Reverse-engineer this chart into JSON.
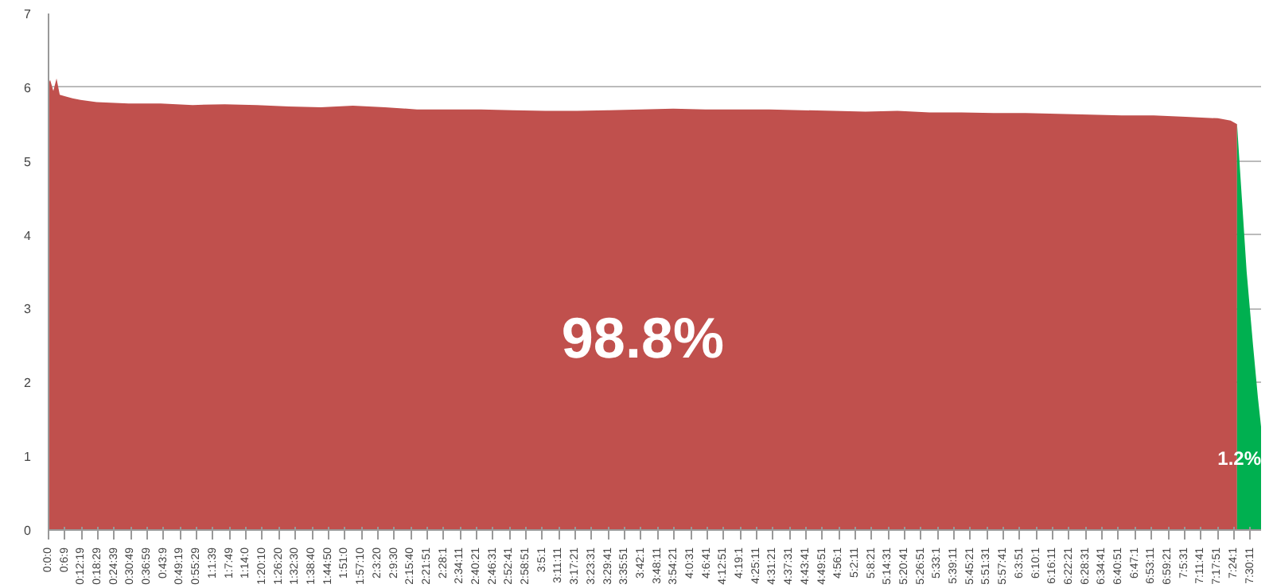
{
  "chart_data": {
    "type": "area",
    "series": [
      {
        "name": "98.8%",
        "color": "#c0504d",
        "x": [
          0,
          0.01,
          0.03,
          0.05,
          0.07,
          0.1,
          0.15,
          0.2,
          0.3,
          0.5,
          0.7,
          0.9,
          1.1,
          1.3,
          1.5,
          1.7,
          1.9,
          2.1,
          2.3,
          2.5,
          2.7,
          2.9,
          3.1,
          3.3,
          3.5,
          3.7,
          3.9,
          4.1,
          4.3,
          4.5,
          4.7,
          4.9,
          5.1,
          5.3,
          5.5,
          5.7,
          5.9,
          6.1,
          6.3,
          6.5,
          6.7,
          6.9,
          7.1,
          7.3,
          7.38,
          7.42
        ],
        "values": [
          6.05,
          6.1,
          5.95,
          6.12,
          5.9,
          5.88,
          5.85,
          5.83,
          5.8,
          5.78,
          5.78,
          5.76,
          5.77,
          5.76,
          5.74,
          5.73,
          5.75,
          5.73,
          5.7,
          5.7,
          5.7,
          5.69,
          5.68,
          5.68,
          5.69,
          5.7,
          5.71,
          5.7,
          5.7,
          5.7,
          5.69,
          5.68,
          5.67,
          5.68,
          5.66,
          5.66,
          5.65,
          5.65,
          5.64,
          5.63,
          5.62,
          5.62,
          5.6,
          5.58,
          5.55,
          5.5
        ]
      },
      {
        "name": "1.2%",
        "color": "#00b050",
        "x": [
          7.42,
          7.45,
          7.48,
          7.52,
          7.55,
          7.57
        ],
        "values": [
          5.5,
          4.5,
          3.5,
          2.5,
          1.8,
          1.4
        ]
      }
    ],
    "xlim": [
      0,
      7.57
    ],
    "xticks": [
      {
        "value": 0,
        "label": "0:0:0"
      },
      {
        "value": 0.1025,
        "label": "0:6:9"
      },
      {
        "value": 0.2053,
        "label": "0:12:19"
      },
      {
        "value": 0.3081,
        "label": "0:18:29"
      },
      {
        "value": 0.4108,
        "label": "0:24:39"
      },
      {
        "value": 0.5136,
        "label": "0:30:49"
      },
      {
        "value": 0.6164,
        "label": "0:36:59"
      },
      {
        "value": 0.7192,
        "label": "0:43:9"
      },
      {
        "value": 0.8219,
        "label": "0:49:19"
      },
      {
        "value": 0.9247,
        "label": "0:55:29"
      },
      {
        "value": 1.0275,
        "label": "1:1:39"
      },
      {
        "value": 1.1303,
        "label": "1:7:49"
      },
      {
        "value": 1.2333,
        "label": "1:14:0"
      },
      {
        "value": 1.3361,
        "label": "1:20:10"
      },
      {
        "value": 1.4389,
        "label": "1:26:20"
      },
      {
        "value": 1.5417,
        "label": "1:32:30"
      },
      {
        "value": 1.6444,
        "label": "1:38:40"
      },
      {
        "value": 1.7472,
        "label": "1:44:50"
      },
      {
        "value": 1.85,
        "label": "1:51:0"
      },
      {
        "value": 1.9528,
        "label": "1:57:10"
      },
      {
        "value": 2.0556,
        "label": "2:3:20"
      },
      {
        "value": 2.1583,
        "label": "2:9:30"
      },
      {
        "value": 2.2611,
        "label": "2:15:40"
      },
      {
        "value": 2.3642,
        "label": "2:21:51"
      },
      {
        "value": 2.4669,
        "label": "2:28:1"
      },
      {
        "value": 2.5697,
        "label": "2:34:11"
      },
      {
        "value": 2.6725,
        "label": "2:40:21"
      },
      {
        "value": 2.7753,
        "label": "2:46:31"
      },
      {
        "value": 2.8781,
        "label": "2:52:41"
      },
      {
        "value": 2.9808,
        "label": "2:58:51"
      },
      {
        "value": 3.0836,
        "label": "3:5:1"
      },
      {
        "value": 3.1864,
        "label": "3:11:11"
      },
      {
        "value": 3.2892,
        "label": "3:17:21"
      },
      {
        "value": 3.3919,
        "label": "3:23:31"
      },
      {
        "value": 3.4947,
        "label": "3:29:41"
      },
      {
        "value": 3.5975,
        "label": "3:35:51"
      },
      {
        "value": 3.7003,
        "label": "3:42:1"
      },
      {
        "value": 3.8031,
        "label": "3:48:11"
      },
      {
        "value": 3.9058,
        "label": "3:54:21"
      },
      {
        "value": 4.0086,
        "label": "4:0:31"
      },
      {
        "value": 4.1114,
        "label": "4:6:41"
      },
      {
        "value": 4.2142,
        "label": "4:12:51"
      },
      {
        "value": 4.3169,
        "label": "4:19:1"
      },
      {
        "value": 4.4197,
        "label": "4:25:11"
      },
      {
        "value": 4.5225,
        "label": "4:31:21"
      },
      {
        "value": 4.6253,
        "label": "4:37:31"
      },
      {
        "value": 4.7281,
        "label": "4:43:41"
      },
      {
        "value": 4.8308,
        "label": "4:49:51"
      },
      {
        "value": 4.9336,
        "label": "4:56:1"
      },
      {
        "value": 5.0364,
        "label": "5:2:11"
      },
      {
        "value": 5.1392,
        "label": "5:8:21"
      },
      {
        "value": 5.2419,
        "label": "5:14:31"
      },
      {
        "value": 5.3447,
        "label": "5:20:41"
      },
      {
        "value": 5.4475,
        "label": "5:26:51"
      },
      {
        "value": 5.5503,
        "label": "5:33:1"
      },
      {
        "value": 5.6531,
        "label": "5:39:11"
      },
      {
        "value": 5.7558,
        "label": "5:45:21"
      },
      {
        "value": 5.8586,
        "label": "5:51:31"
      },
      {
        "value": 5.9614,
        "label": "5:57:41"
      },
      {
        "value": 6.0642,
        "label": "6:3:51"
      },
      {
        "value": 6.1669,
        "label": "6:10:1"
      },
      {
        "value": 6.2697,
        "label": "6:16:11"
      },
      {
        "value": 6.3725,
        "label": "6:22:21"
      },
      {
        "value": 6.4753,
        "label": "6:28:31"
      },
      {
        "value": 6.5781,
        "label": "6:34:41"
      },
      {
        "value": 6.6808,
        "label": "6:40:51"
      },
      {
        "value": 6.7836,
        "label": "6:47:1"
      },
      {
        "value": 6.8864,
        "label": "6:53:11"
      },
      {
        "value": 6.9892,
        "label": "6:59:21"
      },
      {
        "value": 7.0919,
        "label": "7:5:31"
      },
      {
        "value": 7.1947,
        "label": "7:11:41"
      },
      {
        "value": 7.2975,
        "label": "7:17:51"
      },
      {
        "value": 7.4003,
        "label": "7:24:1"
      },
      {
        "value": 7.5031,
        "label": "7:30:11"
      }
    ],
    "ylim": [
      0,
      7
    ],
    "yticks": [
      0,
      1,
      2,
      3,
      4,
      5,
      6,
      7
    ],
    "grid": "y"
  }
}
